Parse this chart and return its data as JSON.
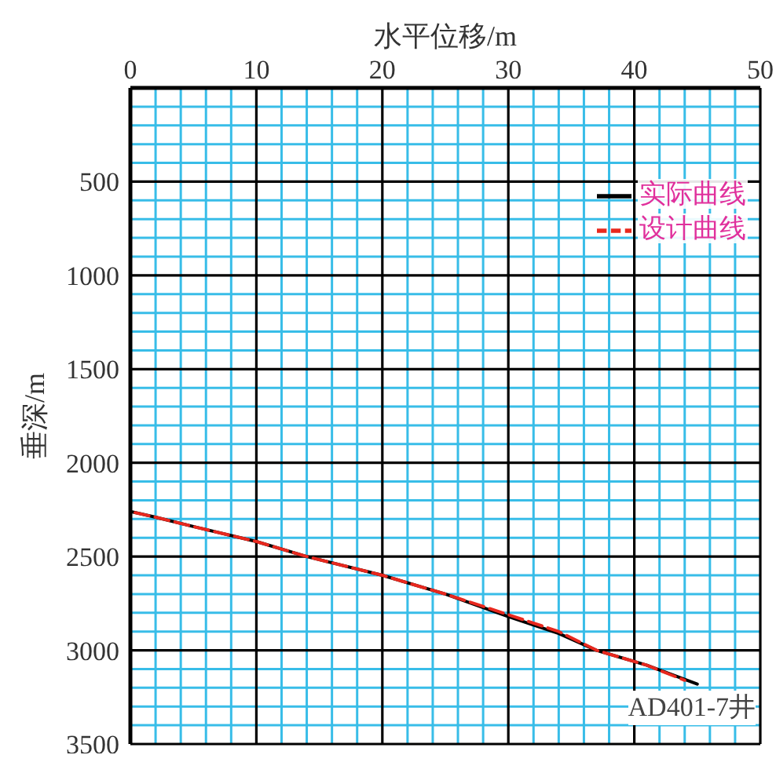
{
  "chart_data": {
    "type": "line",
    "xlabel": "水平位移/m",
    "ylabel": "垂深/m",
    "xlim": [
      0,
      50
    ],
    "ylim": [
      3500,
      0
    ],
    "xticks": [
      0,
      {
        "value": 2,
        "label": null
      },
      {
        "value": 4,
        "label": null
      },
      {
        "value": 6,
        "label": null
      },
      {
        "value": 8,
        "label": null
      },
      10,
      {
        "value": 12,
        "label": null
      },
      {
        "value": 14,
        "label": null
      },
      {
        "value": 16,
        "label": null
      },
      {
        "value": 18,
        "label": null
      },
      20,
      {
        "value": 22,
        "label": null
      },
      {
        "value": 24,
        "label": null
      },
      {
        "value": 26,
        "label": null
      },
      {
        "value": 28,
        "label": null
      },
      30,
      {
        "value": 32,
        "label": null
      },
      {
        "value": 34,
        "label": null
      },
      {
        "value": 36,
        "label": null
      },
      {
        "value": 38,
        "label": null
      },
      40,
      {
        "value": 42,
        "label": null
      },
      {
        "value": 44,
        "label": null
      },
      {
        "value": 46,
        "label": null
      },
      {
        "value": 48,
        "label": null
      },
      50
    ],
    "yticks": [
      {
        "value": 0,
        "label": null
      },
      {
        "value": 100,
        "label": null
      },
      {
        "value": 200,
        "label": null
      },
      {
        "value": 300,
        "label": null
      },
      {
        "value": 400,
        "label": null
      },
      500,
      {
        "value": 600,
        "label": null
      },
      {
        "value": 700,
        "label": null
      },
      {
        "value": 800,
        "label": null
      },
      {
        "value": 900,
        "label": null
      },
      1000,
      {
        "value": 1100,
        "label": null
      },
      {
        "value": 1200,
        "label": null
      },
      {
        "value": 1300,
        "label": null
      },
      {
        "value": 1400,
        "label": null
      },
      1500,
      {
        "value": 1600,
        "label": null
      },
      {
        "value": 1700,
        "label": null
      },
      {
        "value": 1800,
        "label": null
      },
      {
        "value": 1900,
        "label": null
      },
      2000,
      {
        "value": 2100,
        "label": null
      },
      {
        "value": 2200,
        "label": null
      },
      {
        "value": 2300,
        "label": null
      },
      {
        "value": 2400,
        "label": null
      },
      2500,
      {
        "value": 2600,
        "label": null
      },
      {
        "value": 2700,
        "label": null
      },
      {
        "value": 2800,
        "label": null
      },
      {
        "value": 2900,
        "label": null
      },
      3000,
      {
        "value": 3100,
        "label": null
      },
      {
        "value": 3200,
        "label": null
      },
      {
        "value": 3300,
        "label": null
      },
      {
        "value": 3400,
        "label": null
      },
      3500
    ],
    "grid": true,
    "legend": "top right",
    "annotations": [
      "AD401-7井"
    ],
    "series": [
      {
        "name": "实际曲线",
        "color": "#000000",
        "line_style": "solid",
        "x": [
          0,
          0,
          2,
          5,
          10,
          14,
          20,
          25,
          30,
          34,
          37,
          41,
          45
        ],
        "values": [
          0,
          2260,
          2290,
          2340,
          2420,
          2500,
          2600,
          2700,
          2820,
          2910,
          3000,
          3080,
          3180
        ]
      },
      {
        "name": "设计曲线",
        "color": "#e8281e",
        "line_style": "dashed",
        "x": [
          0,
          0,
          2,
          5,
          10,
          14,
          20,
          25,
          30,
          34,
          37,
          41,
          44
        ],
        "values": [
          0,
          2260,
          2290,
          2340,
          2420,
          2500,
          2600,
          2700,
          2810,
          2900,
          3000,
          3080,
          3160
        ]
      }
    ]
  }
}
